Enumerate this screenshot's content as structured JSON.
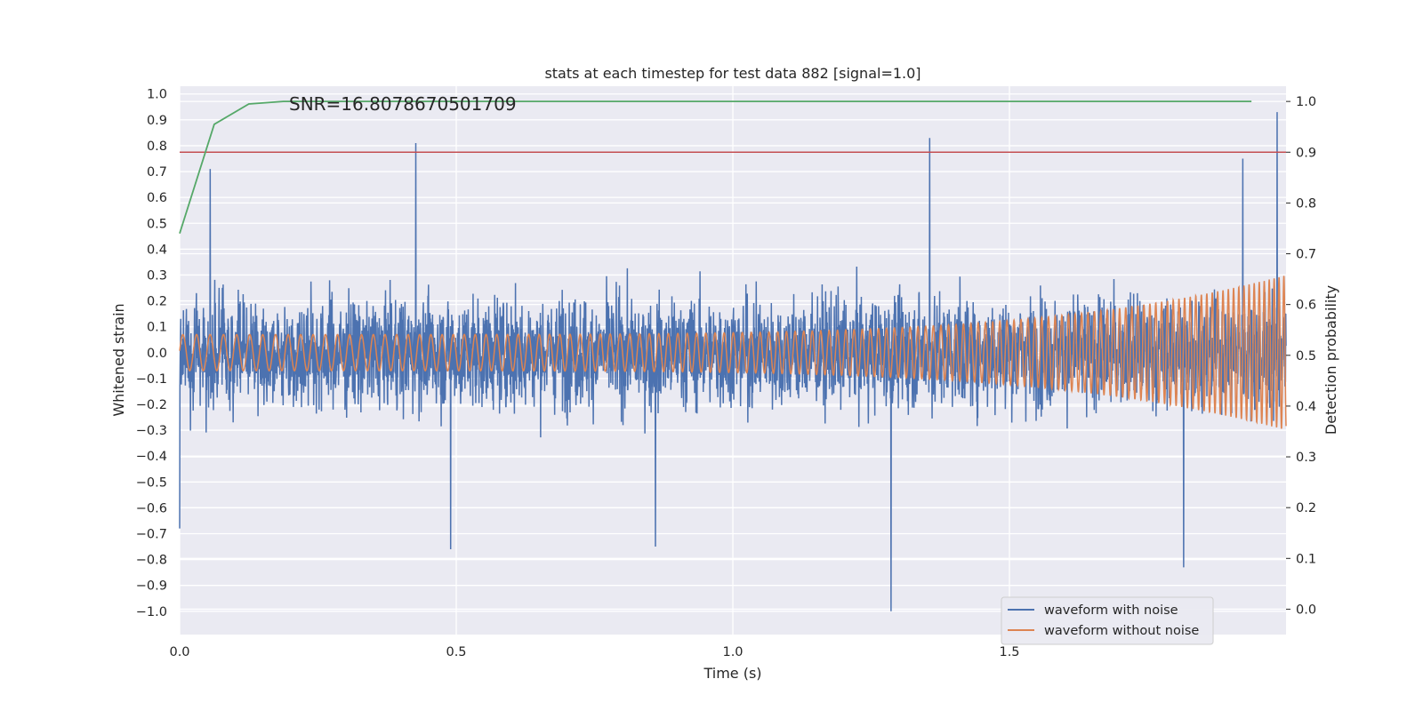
{
  "chart_data": {
    "type": "line",
    "title": "stats at each timestep for test data 882 [signal=1.0]",
    "annotation": "SNR=16.8078670501709",
    "xlabel": "Time (s)",
    "ylabel_left": "Whitened strain",
    "ylabel_right": "Detection probability",
    "xlim": [
      0.0,
      2.0
    ],
    "ylim_left": [
      -1.09,
      1.03
    ],
    "ylim_right": [
      -0.05,
      1.03
    ],
    "x_ticks": [
      0.0,
      0.5,
      1.0,
      1.5
    ],
    "x_tick_labels": [
      "0.0",
      "0.5",
      "1.0",
      "1.5"
    ],
    "y_ticks_left": [
      1.0,
      0.9,
      0.8,
      0.7,
      0.6,
      0.5,
      0.4,
      0.3,
      0.2,
      0.1,
      0.0,
      -0.1,
      -0.2,
      -0.3,
      -0.4,
      -0.5,
      -0.6,
      -0.7,
      -0.8,
      -0.9,
      -1.0
    ],
    "y_tick_labels_left": [
      "1.0",
      "0.9",
      "0.8",
      "0.7",
      "0.6",
      "0.5",
      "0.4",
      "0.3",
      "0.2",
      "0.1",
      "0.0",
      "−0.1",
      "−0.2",
      "−0.3",
      "−0.4",
      "−0.5",
      "−0.6",
      "−0.7",
      "−0.8",
      "−0.9",
      "−1.0"
    ],
    "y_ticks_right": [
      1.0,
      0.9,
      0.8,
      0.7,
      0.6,
      0.5,
      0.4,
      0.3,
      0.2,
      0.1,
      0.0
    ],
    "y_tick_labels_right": [
      "1.0",
      "0.9",
      "0.8",
      "0.7",
      "0.6",
      "0.5",
      "0.4",
      "0.3",
      "0.2",
      "0.1",
      "0.0"
    ],
    "grid": true,
    "legend_position": "lower-right",
    "series": [
      {
        "name": "waveform with noise",
        "axis": "left",
        "color": "#4c72b0",
        "kind": "noisy-strain",
        "amplitude_range": [
          -1.0,
          0.93
        ],
        "peaks": [
          {
            "x": 0.427,
            "y": 0.81
          },
          {
            "x": 1.356,
            "y": 0.83
          },
          {
            "x": 1.286,
            "y": -1.0
          },
          {
            "x": 1.984,
            "y": 0.93
          },
          {
            "x": 1.922,
            "y": 0.75
          },
          {
            "x": 0.49,
            "y": -0.76
          },
          {
            "x": 0.86,
            "y": -0.75
          },
          {
            "x": 1.815,
            "y": -0.83
          },
          {
            "x": 0.055,
            "y": 0.71
          },
          {
            "x": 0.0,
            "y": -0.68
          }
        ]
      },
      {
        "name": "waveform without noise",
        "axis": "left",
        "color": "#dd8452",
        "kind": "chirp",
        "amplitude_start": 0.07,
        "amplitude_end": 0.3
      },
      {
        "name": "",
        "axis": "right",
        "color": "#55a868",
        "kind": "detection-probability",
        "x": [
          0.0,
          0.0625,
          0.125,
          0.1875,
          0.25,
          0.5,
          1.0,
          1.5,
          1.9375
        ],
        "y": [
          0.74,
          0.955,
          0.995,
          1.0,
          1.0,
          1.0,
          1.0,
          1.0,
          1.0
        ]
      },
      {
        "name": "",
        "axis": "right",
        "color": "#c44e52",
        "kind": "threshold",
        "y": 0.9
      }
    ]
  }
}
